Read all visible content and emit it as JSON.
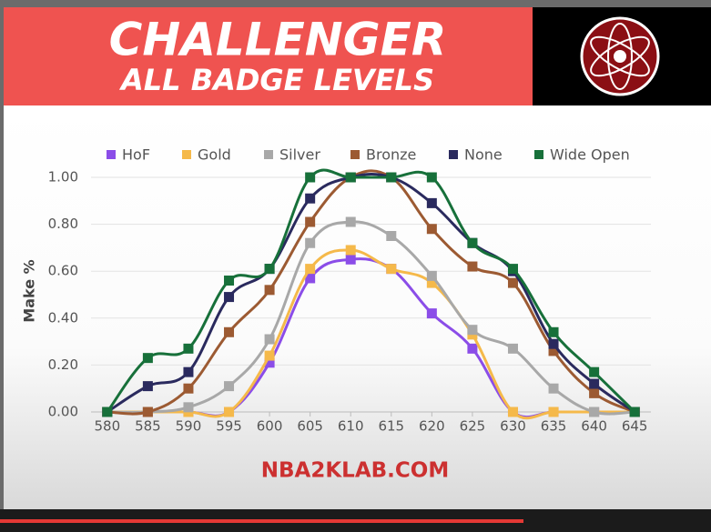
{
  "chart_data": {
    "type": "line",
    "title": "CHALLENGER",
    "subtitle": "ALL BADGE LEVELS",
    "y_label": "Make %",
    "footer": "NBA2KLAB.COM",
    "x": [
      580,
      585,
      590,
      595,
      600,
      605,
      610,
      615,
      620,
      625,
      630,
      635,
      640,
      645
    ],
    "xlim": [
      578,
      647
    ],
    "ylim": [
      0,
      1
    ],
    "yticks": [
      {
        "value": 0,
        "label": "0.00"
      },
      {
        "value": 0.2,
        "label": "0.20"
      },
      {
        "value": 0.4,
        "label": "0.40"
      },
      {
        "value": 0.6,
        "label": "0.60"
      },
      {
        "value": 0.8,
        "label": "0.80"
      },
      {
        "value": 1,
        "label": "1.00"
      }
    ],
    "grid": true,
    "legend": "top",
    "series": [
      {
        "name": "HoF",
        "color": "#8b4de8",
        "values": [
          0,
          0,
          0,
          0,
          0.21,
          0.57,
          0.65,
          0.61,
          0.42,
          0.27,
          0,
          0,
          0,
          0
        ]
      },
      {
        "name": "Gold",
        "color": "#f5b94a",
        "values": [
          0,
          0,
          0,
          0,
          0.24,
          0.61,
          0.69,
          0.61,
          0.55,
          0.33,
          0,
          0,
          0,
          0
        ]
      },
      {
        "name": "Silver",
        "color": "#a8a8a8",
        "values": [
          0,
          0,
          0.02,
          0.11,
          0.31,
          0.72,
          0.81,
          0.75,
          0.58,
          0.35,
          0.27,
          0.1,
          0,
          0
        ]
      },
      {
        "name": "Bronze",
        "color": "#9c5a32",
        "values": [
          0,
          0,
          0.1,
          0.34,
          0.52,
          0.81,
          1,
          1,
          0.78,
          0.62,
          0.55,
          0.26,
          0.08,
          0
        ]
      },
      {
        "name": "None",
        "color": "#2a2a5e",
        "values": [
          0,
          0.11,
          0.17,
          0.49,
          0.61,
          0.91,
          1,
          1,
          0.89,
          0.72,
          0.6,
          0.29,
          0.12,
          0
        ]
      },
      {
        "name": "Wide Open",
        "color": "#17703a",
        "values": [
          0,
          0.23,
          0.27,
          0.56,
          0.61,
          1,
          1,
          1,
          1,
          0.72,
          0.61,
          0.34,
          0.17,
          0
        ]
      }
    ]
  }
}
